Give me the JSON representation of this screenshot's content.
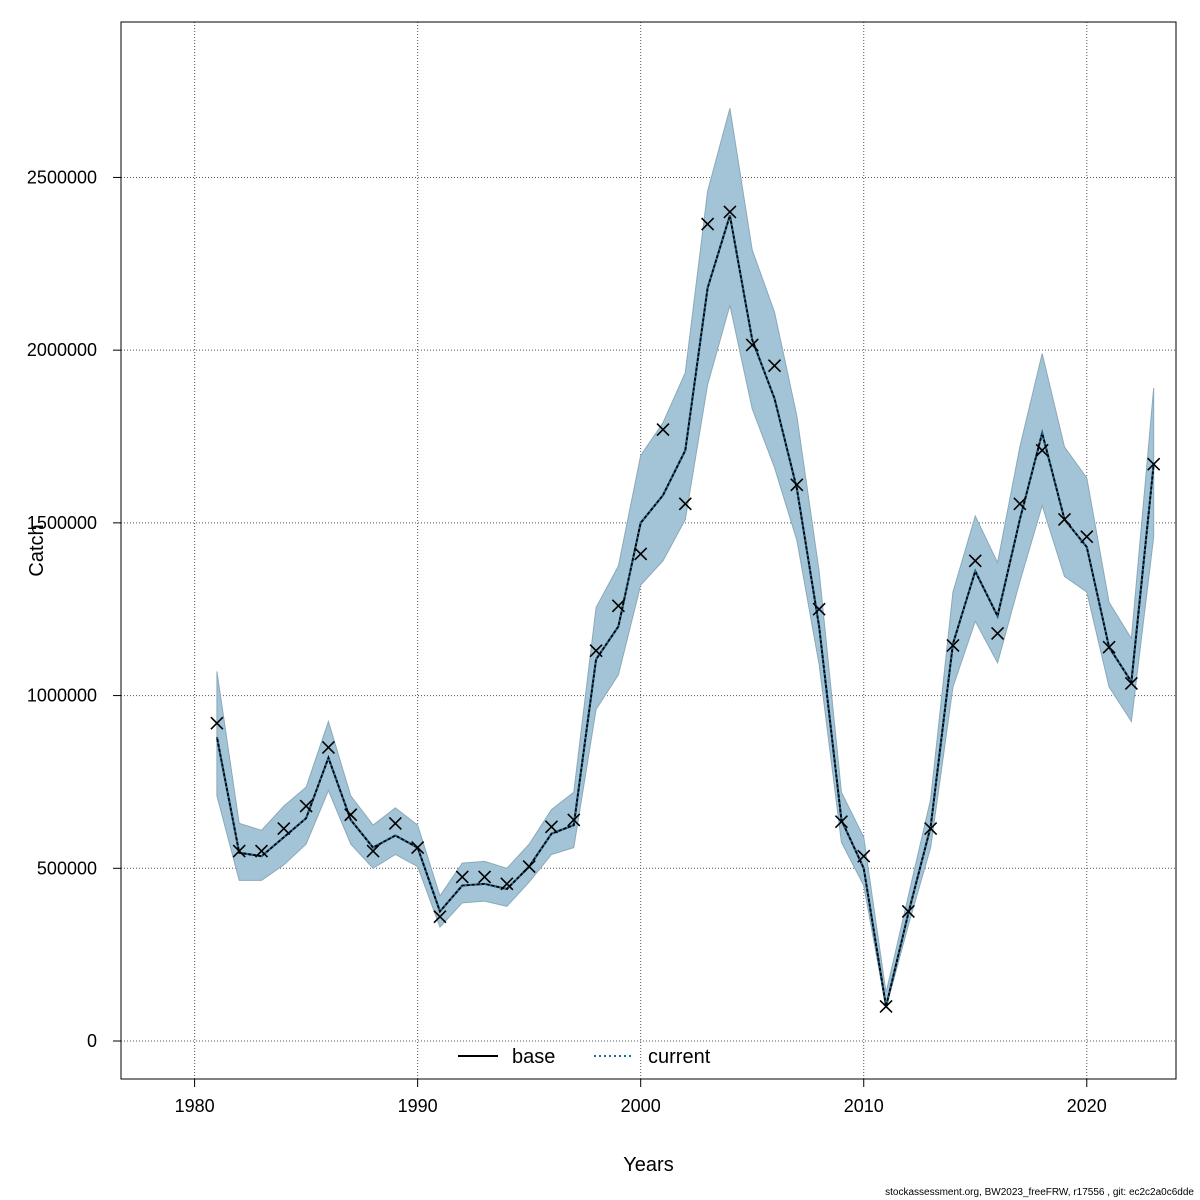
{
  "chart_data": {
    "type": "line",
    "xlabel": "Years",
    "ylabel": "Catch",
    "xlim": [
      1976.7,
      2024.0
    ],
    "ylim": [
      -110000,
      2950000
    ],
    "x_ticks": [
      1980,
      1990,
      2000,
      2010,
      2020
    ],
    "x_tick_labels": [
      "1980",
      "1990",
      "2000",
      "2010",
      "2020"
    ],
    "y_ticks": [
      0,
      500000,
      1000000,
      1500000,
      2000000,
      2500000
    ],
    "y_tick_labels": [
      "0",
      "500000",
      "1000000",
      "1500000",
      "2000000",
      "2500000"
    ],
    "grid": true,
    "legend_position": "bottom",
    "x": [
      1981,
      1982,
      1983,
      1984,
      1985,
      1986,
      1987,
      1988,
      1989,
      1990,
      1991,
      1992,
      1993,
      1994,
      1995,
      1996,
      1997,
      1998,
      1999,
      2000,
      2001,
      2002,
      2003,
      2004,
      2005,
      2006,
      2007,
      2008,
      2009,
      2010,
      2011,
      2012,
      2013,
      2014,
      2015,
      2016,
      2017,
      2018,
      2019,
      2020,
      2021,
      2022,
      2023
    ],
    "series": [
      {
        "name": "base",
        "style": "solid",
        "color": "#000000",
        "values": [
          880000,
          545000,
          535000,
          590000,
          645000,
          820000,
          640000,
          560000,
          595000,
          560000,
          375000,
          450000,
          455000,
          440000,
          505000,
          600000,
          625000,
          1105000,
          1200000,
          1500000,
          1580000,
          1710000,
          2180000,
          2390000,
          2030000,
          1860000,
          1600000,
          1200000,
          640000,
          500000,
          100000,
          370000,
          620000,
          1150000,
          1360000,
          1230000,
          1510000,
          1760000,
          1510000,
          1430000,
          1140000,
          1040000,
          1670000
        ]
      },
      {
        "name": "current",
        "style": "dotted",
        "color": "#1f6a9a",
        "values": [
          880000,
          545000,
          535000,
          590000,
          645000,
          820000,
          640000,
          560000,
          595000,
          560000,
          375000,
          450000,
          455000,
          440000,
          505000,
          600000,
          625000,
          1105000,
          1200000,
          1500000,
          1580000,
          1710000,
          2180000,
          2390000,
          2030000,
          1860000,
          1600000,
          1200000,
          640000,
          500000,
          100000,
          370000,
          620000,
          1150000,
          1360000,
          1230000,
          1510000,
          1760000,
          1510000,
          1430000,
          1140000,
          1040000,
          1670000
        ]
      }
    ],
    "band": {
      "color": "#a3c4d6",
      "lower": [
        710000,
        465000,
        465000,
        510000,
        570000,
        725000,
        570000,
        500000,
        540000,
        505000,
        330000,
        400000,
        405000,
        390000,
        460000,
        540000,
        560000,
        960000,
        1060000,
        1320000,
        1390000,
        1510000,
        1900000,
        2130000,
        1830000,
        1660000,
        1450000,
        1090000,
        575000,
        450000,
        95000,
        335000,
        560000,
        1025000,
        1215000,
        1095000,
        1330000,
        1550000,
        1345000,
        1300000,
        1025000,
        925000,
        1460000
      ],
      "upper": [
        1070000,
        630000,
        610000,
        680000,
        735000,
        925000,
        710000,
        625000,
        675000,
        625000,
        420000,
        515000,
        520000,
        500000,
        570000,
        670000,
        720000,
        1255000,
        1375000,
        1695000,
        1790000,
        1935000,
        2460000,
        2700000,
        2290000,
        2110000,
        1810000,
        1360000,
        720000,
        590000,
        140000,
        420000,
        700000,
        1300000,
        1520000,
        1385000,
        1720000,
        1990000,
        1720000,
        1630000,
        1270000,
        1165000,
        1890000
      ]
    },
    "observed": {
      "marker": "x",
      "values": [
        920000,
        550000,
        550000,
        615000,
        680000,
        850000,
        655000,
        550000,
        630000,
        560000,
        360000,
        475000,
        475000,
        455000,
        505000,
        620000,
        640000,
        1130000,
        1260000,
        1410000,
        1770000,
        1555000,
        2365000,
        2400000,
        2015000,
        1955000,
        1610000,
        1250000,
        635000,
        535000,
        100000,
        375000,
        615000,
        1145000,
        1390000,
        1180000,
        1555000,
        1710000,
        1510000,
        1460000,
        1140000,
        1035000,
        1670000
      ]
    }
  },
  "footer": "stockassessment.org, BW2023_freeFRW, r17556 , git: ec2c2a0c6dde"
}
